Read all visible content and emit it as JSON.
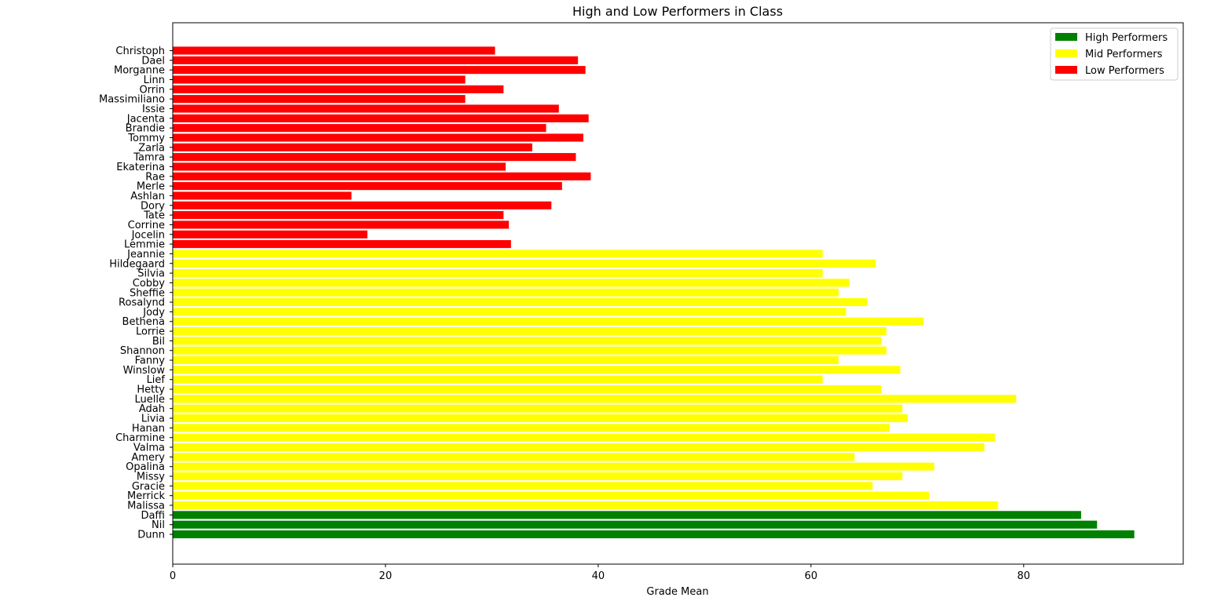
{
  "chart_data": {
    "type": "bar",
    "orientation": "horizontal",
    "title": "High and Low Performers in Class",
    "xlabel": "Grade Mean",
    "ylabel": "",
    "xlim": [
      0,
      95
    ],
    "xticks": [
      0,
      20,
      40,
      60,
      80
    ],
    "grid": false,
    "legend_position": "top-right",
    "series": [
      {
        "name": "High Performers",
        "color": "#008000",
        "categories": [
          "Dunn",
          "Nil",
          "Daffi"
        ],
        "values": [
          90.4,
          86.9,
          85.4
        ]
      },
      {
        "name": "Mid Performers",
        "color": "#ffff00",
        "categories": [
          "Malissa",
          "Merrick",
          "Gracie",
          "Missy",
          "Opalina",
          "Amery",
          "Valma",
          "Charmine",
          "Hanan",
          "Livia",
          "Adah",
          "Luelle",
          "Hetty",
          "Lief",
          "Winslow",
          "Fanny",
          "Shannon",
          "Bil",
          "Lorrie",
          "Bethena",
          "Jody",
          "Rosalynd",
          "Sheffie",
          "Cobby",
          "Silvia",
          "Hildegaard",
          "Jeannie"
        ],
        "values": [
          77.6,
          71.1,
          65.8,
          68.6,
          71.6,
          64.1,
          76.3,
          77.3,
          67.4,
          69.1,
          68.6,
          79.3,
          66.6,
          61.1,
          68.4,
          62.6,
          67.1,
          66.6,
          67.1,
          70.6,
          63.3,
          65.3,
          62.6,
          63.6,
          61.1,
          66.1,
          61.1
        ]
      },
      {
        "name": "Low Performers",
        "color": "#ff0000",
        "categories": [
          "Lemmie",
          "Jocelin",
          "Corrine",
          "Tate",
          "Dory",
          "Ashlan",
          "Merle",
          "Rae",
          "Ekaterina",
          "Tamra",
          "Zarla",
          "Tommy",
          "Brandie",
          "Jacenta",
          "Issie",
          "Massimiliano",
          "Orrin",
          "Linn",
          "Morganne",
          "Dael",
          "Christoph"
        ],
        "values": [
          31.8,
          18.3,
          31.6,
          31.1,
          35.6,
          16.8,
          36.6,
          39.3,
          31.3,
          37.9,
          33.8,
          38.6,
          35.1,
          39.1,
          36.3,
          27.5,
          31.1,
          27.5,
          38.8,
          38.1,
          30.3
        ]
      }
    ]
  }
}
